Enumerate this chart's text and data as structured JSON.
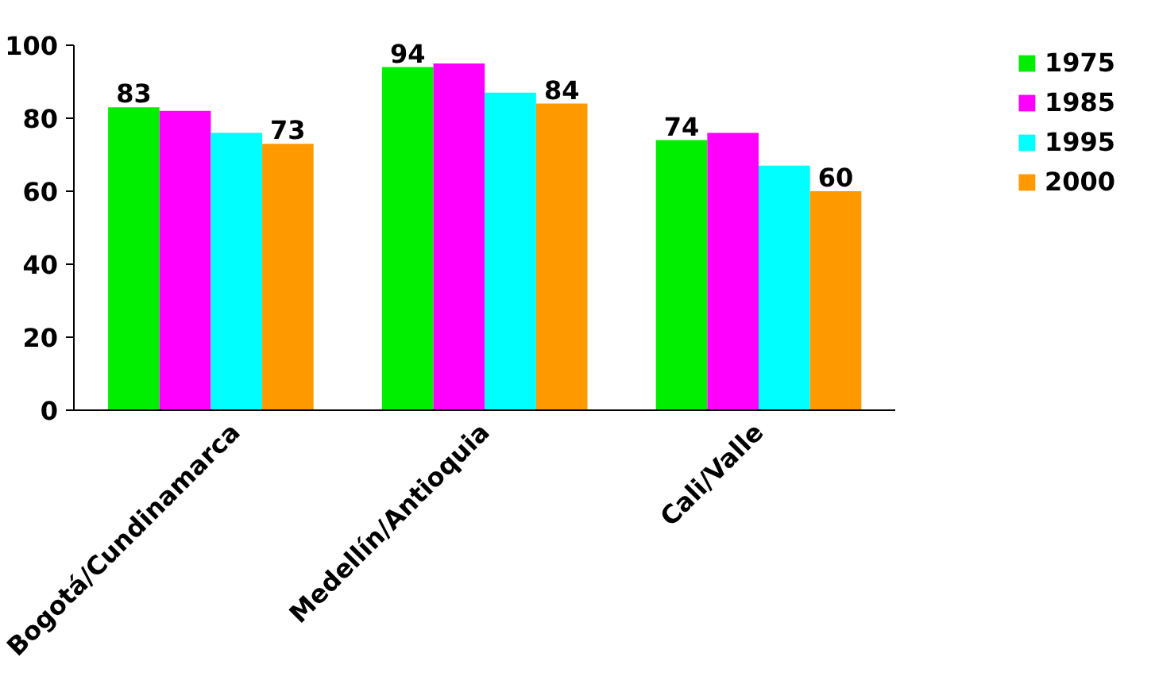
{
  "chart_data": {
    "type": "bar",
    "categories": [
      "Bogotá/Cundinamarca",
      "Medellín/Antioquia",
      "Cali/Valle"
    ],
    "series": [
      {
        "name": "1975",
        "color": "#00ee00",
        "values": [
          83,
          94,
          74
        ],
        "value_labels": [
          "83",
          "94",
          "74"
        ]
      },
      {
        "name": "1985",
        "color": "#ff00ff",
        "values": [
          82,
          95,
          76
        ]
      },
      {
        "name": "1995",
        "color": "#00ffff",
        "values": [
          76,
          87,
          67
        ]
      },
      {
        "name": "2000",
        "color": "#ff9900",
        "values": [
          73,
          84,
          60
        ],
        "value_labels": [
          "73",
          "84",
          "60"
        ]
      }
    ],
    "ylim": [
      0,
      100
    ],
    "yticks": [
      0,
      20,
      40,
      60,
      80,
      100
    ],
    "grid": false,
    "legend": "right"
  }
}
